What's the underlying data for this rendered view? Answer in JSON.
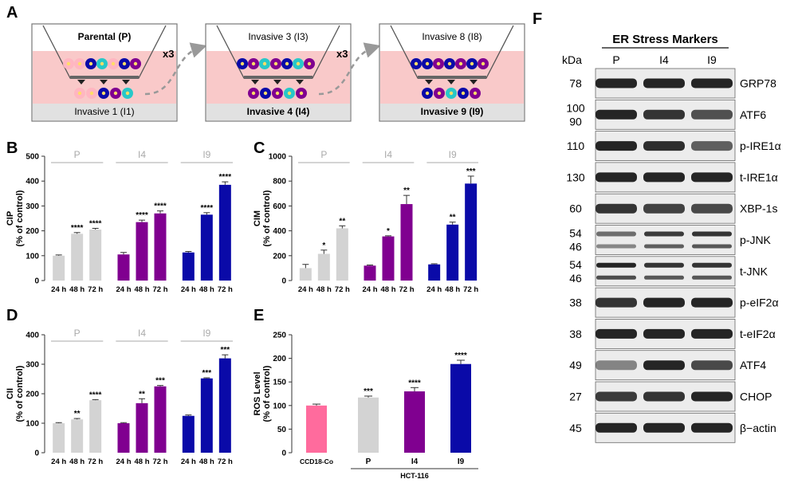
{
  "panels": {
    "a": {
      "letter": "A",
      "boxes": [
        {
          "top": "Parental (P)",
          "bottom": "Invasive 1 (I1)",
          "top_bold": true,
          "bottom_bold": false
        },
        {
          "top": "Invasive 3 (I3)",
          "bottom": "Invasive 4 (I4)",
          "top_bold": false,
          "bottom_bold": true
        },
        {
          "top": "Invasive 8 (I8)",
          "bottom": "Invasive 9 (I9)",
          "top_bold": false,
          "bottom_bold": true
        }
      ],
      "repeat_label": "x3"
    },
    "f": {
      "letter": "F",
      "title": "ER Stress Markers",
      "kda_label": "kDa",
      "lanes": [
        "P",
        "I4",
        "I9"
      ],
      "blots": [
        {
          "kda": [
            "78"
          ],
          "name": "GRP78",
          "bands": [
            1.0,
            1.0,
            1.0
          ]
        },
        {
          "kda": [
            "100",
            "90"
          ],
          "name": "ATF6",
          "bands": [
            1.0,
            0.9,
            0.7
          ]
        },
        {
          "kda": [
            "110"
          ],
          "name": "p-IRE1α",
          "bands": [
            1.0,
            0.95,
            0.6
          ]
        },
        {
          "kda": [
            "130"
          ],
          "name": "t-IRE1α",
          "bands": [
            1.0,
            1.0,
            1.0
          ]
        },
        {
          "kda": [
            "60"
          ],
          "name": "XBP-1s",
          "bands": [
            0.9,
            0.8,
            0.75
          ]
        },
        {
          "kda": [
            "54",
            "46"
          ],
          "name": "p-JNK",
          "bands": [
            0.5,
            0.85,
            0.9
          ]
        },
        {
          "kda": [
            "54",
            "46"
          ],
          "name": "t-JNK",
          "bands": [
            1.0,
            0.9,
            0.9
          ]
        },
        {
          "kda": [
            "38"
          ],
          "name": "p-eIF2α",
          "bands": [
            0.9,
            1.0,
            1.0
          ]
        },
        {
          "kda": [
            "38"
          ],
          "name": "t-eIF2α",
          "bands": [
            1.0,
            1.0,
            1.0
          ]
        },
        {
          "kda": [
            "49"
          ],
          "name": "ATF4",
          "bands": [
            0.35,
            1.0,
            0.75
          ]
        },
        {
          "kda": [
            "27"
          ],
          "name": "CHOP",
          "bands": [
            0.85,
            0.9,
            1.0
          ]
        },
        {
          "kda": [
            "45"
          ],
          "name": "β−actin",
          "bands": [
            1.0,
            1.0,
            1.0
          ]
        }
      ]
    }
  },
  "colors": {
    "p": "#d3d3d3",
    "i4": "#800090",
    "i9": "#0a0aa8",
    "ccd": "#ff6b9d",
    "grid": "#bbbbbb"
  },
  "chart_data": [
    {
      "id": "B",
      "type": "bar",
      "ylabel": "CIP",
      "ylabel2": "(% of control)",
      "ylim": [
        0,
        500
      ],
      "yticks": [
        0,
        100,
        200,
        300,
        400,
        500
      ],
      "groups": [
        "P",
        "I4",
        "I9"
      ],
      "categories": [
        "24 h",
        "48 h",
        "72 h"
      ],
      "series": [
        {
          "name": "P",
          "values": [
            100,
            188,
            205
          ],
          "errors": [
            3,
            5,
            5
          ],
          "sig": [
            "",
            "****",
            "****"
          ]
        },
        {
          "name": "I4",
          "values": [
            105,
            235,
            270
          ],
          "errors": [
            8,
            8,
            10
          ],
          "sig": [
            "",
            "****",
            "****"
          ]
        },
        {
          "name": "I9",
          "values": [
            113,
            265,
            385
          ],
          "errors": [
            4,
            8,
            12
          ],
          "sig": [
            "",
            "****",
            "****"
          ]
        }
      ]
    },
    {
      "id": "C",
      "type": "bar",
      "ylabel": "CIM",
      "ylabel2": "(% of control)",
      "ylim": [
        0,
        1000
      ],
      "yticks": [
        0,
        200,
        400,
        600,
        800,
        1000
      ],
      "groups": [
        "P",
        "I4",
        "I9"
      ],
      "categories": [
        "24 h",
        "48 h",
        "72 h"
      ],
      "series": [
        {
          "name": "P",
          "values": [
            100,
            215,
            420
          ],
          "errors": [
            30,
            30,
            20
          ],
          "sig": [
            "",
            "*",
            "**"
          ]
        },
        {
          "name": "I4",
          "values": [
            120,
            355,
            615
          ],
          "errors": [
            5,
            5,
            70
          ],
          "sig": [
            "",
            "*",
            "**"
          ]
        },
        {
          "name": "I9",
          "values": [
            130,
            450,
            780
          ],
          "errors": [
            5,
            20,
            60
          ],
          "sig": [
            "",
            "**",
            "***"
          ]
        }
      ]
    },
    {
      "id": "D",
      "type": "bar",
      "ylabel": "CII",
      "ylabel2": "(% of control)",
      "ylim": [
        0,
        400
      ],
      "yticks": [
        0,
        100,
        200,
        300,
        400
      ],
      "groups": [
        "P",
        "I4",
        "I9"
      ],
      "categories": [
        "24 h",
        "48 h",
        "72 h"
      ],
      "series": [
        {
          "name": "P",
          "values": [
            100,
            113,
            178
          ],
          "errors": [
            2,
            3,
            2
          ],
          "sig": [
            "",
            "**",
            "****"
          ]
        },
        {
          "name": "I4",
          "values": [
            100,
            168,
            225
          ],
          "errors": [
            2,
            15,
            3
          ],
          "sig": [
            "",
            "**",
            "***"
          ]
        },
        {
          "name": "I9",
          "values": [
            125,
            252,
            320
          ],
          "errors": [
            3,
            2,
            12
          ],
          "sig": [
            "",
            "***",
            "***"
          ]
        }
      ]
    },
    {
      "id": "E",
      "type": "bar",
      "ylabel": "ROS Level",
      "ylabel2": "(% of control)",
      "ylim": [
        0,
        250
      ],
      "yticks": [
        0,
        50,
        100,
        150,
        200,
        250
      ],
      "categories": [
        "CCD18-Co",
        "P",
        "I4",
        "I9"
      ],
      "values": [
        100,
        117,
        130,
        188
      ],
      "errors": [
        3,
        3,
        8,
        8
      ],
      "sig": [
        "",
        "***",
        "****",
        "****"
      ],
      "group_label": "HCT-116"
    }
  ]
}
